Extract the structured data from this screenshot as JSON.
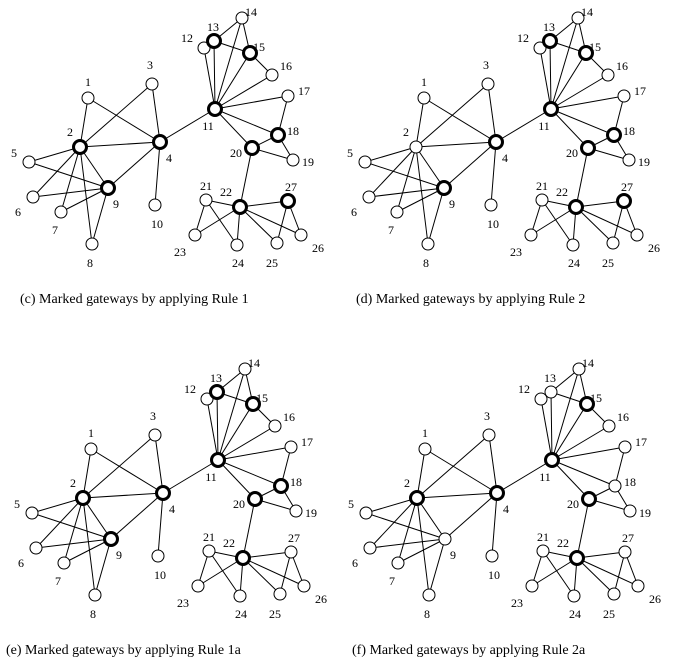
{
  "panels": [
    {
      "caption": "(c) Marked gateways by applying Rule 1",
      "gateways": [
        2,
        4,
        9,
        11,
        13,
        15,
        18,
        20,
        22,
        27
      ]
    },
    {
      "caption": "(d) Marked gateways by applying Rule 2",
      "gateways": [
        4,
        9,
        11,
        13,
        15,
        18,
        20,
        22,
        27
      ]
    },
    {
      "caption": "(e) Marked gateways by applying Rule 1a",
      "gateways": [
        2,
        4,
        9,
        11,
        13,
        15,
        18,
        20,
        22
      ]
    },
    {
      "caption": "(f) Marked gateways by applying Rule 2a",
      "gateways": [
        2,
        4,
        11,
        15,
        20,
        22
      ]
    }
  ],
  "node_labels": [
    "1",
    "2",
    "3",
    "4",
    "5",
    "6",
    "7",
    "8",
    "9",
    "10",
    "11",
    "12",
    "13",
    "14",
    "15",
    "16",
    "17",
    "18",
    "19",
    "20",
    "21",
    "22",
    "23",
    "24",
    "25",
    "26",
    "27"
  ],
  "edges": [
    [
      1,
      2
    ],
    [
      1,
      4
    ],
    [
      3,
      2
    ],
    [
      3,
      4
    ],
    [
      2,
      4
    ],
    [
      2,
      5
    ],
    [
      2,
      6
    ],
    [
      2,
      7
    ],
    [
      2,
      8
    ],
    [
      2,
      9
    ],
    [
      5,
      9
    ],
    [
      6,
      9
    ],
    [
      7,
      9
    ],
    [
      8,
      9
    ],
    [
      4,
      9
    ],
    [
      4,
      10
    ],
    [
      4,
      11
    ],
    [
      11,
      12
    ],
    [
      11,
      13
    ],
    [
      11,
      14
    ],
    [
      11,
      15
    ],
    [
      11,
      16
    ],
    [
      11,
      17
    ],
    [
      11,
      18
    ],
    [
      11,
      20
    ],
    [
      12,
      13
    ],
    [
      13,
      14
    ],
    [
      13,
      15
    ],
    [
      14,
      15
    ],
    [
      15,
      16
    ],
    [
      17,
      18
    ],
    [
      18,
      19
    ],
    [
      18,
      20
    ],
    [
      20,
      19
    ],
    [
      20,
      22
    ],
    [
      22,
      21
    ],
    [
      22,
      23
    ],
    [
      22,
      24
    ],
    [
      22,
      25
    ],
    [
      22,
      26
    ],
    [
      22,
      27
    ],
    [
      21,
      23
    ],
    [
      21,
      24
    ],
    [
      27,
      25
    ],
    [
      27,
      26
    ]
  ]
}
